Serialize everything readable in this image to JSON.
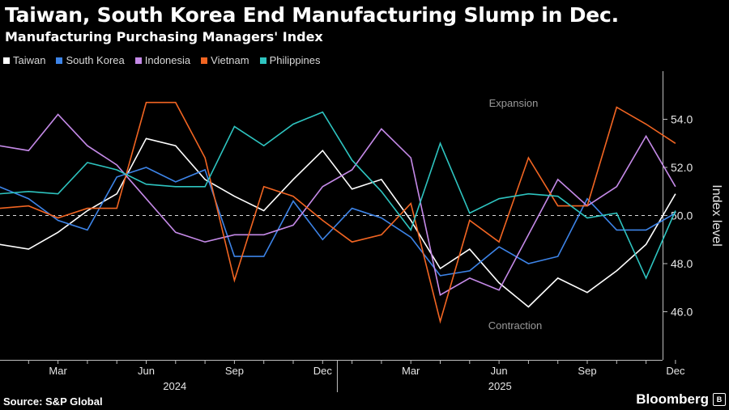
{
  "header": {
    "title": "Taiwan, South Korea End Manufacturing Slump in Dec.",
    "subtitle": "Manufacturing Purchasing Managers' Index"
  },
  "footer": {
    "source": "Source: S&P Global",
    "brand": "Bloomberg"
  },
  "colors": {
    "background": "#000000",
    "Taiwan": "#ffffff",
    "South Korea": "#3d84e8",
    "Indonesia": "#c58ae8",
    "Vietnam": "#f26522",
    "Philippines": "#2ec4c0"
  },
  "chart_data": {
    "type": "line",
    "ylabel": "Index level",
    "ylim": [
      44,
      56
    ],
    "yticks": [
      46.0,
      48.0,
      50.0,
      52.0,
      54.0
    ],
    "y_tick_labels": [
      "46.0",
      "48.0",
      "50.0",
      "52.0",
      "54.0"
    ],
    "reference_line": 50.0,
    "y_axis_position": "right",
    "grid": "vertical month ticks only",
    "legend_position": "top-left",
    "annotations": {
      "above": "Expansion",
      "below": "Contraction"
    },
    "x": [
      "2024-01",
      "2024-02",
      "2024-03",
      "2024-04",
      "2024-05",
      "2024-06",
      "2024-07",
      "2024-08",
      "2024-09",
      "2024-10",
      "2024-11",
      "2024-12",
      "2025-01",
      "2025-02",
      "2025-03",
      "2025-04",
      "2025-05",
      "2025-06",
      "2025-07",
      "2025-08",
      "2025-09",
      "2025-10",
      "2025-11",
      "2025-12"
    ],
    "x_tick_labels": [
      "Mar",
      "Jun",
      "Sep",
      "Dec",
      "Mar",
      "Jun",
      "Sep",
      "Dec"
    ],
    "x_tick_months": [
      "2024-03",
      "2024-06",
      "2024-09",
      "2024-12",
      "2025-03",
      "2025-06",
      "2025-09",
      "2025-12"
    ],
    "year_labels": [
      "2024",
      "2025"
    ],
    "series": [
      {
        "name": "Taiwan",
        "values": [
          48.8,
          48.6,
          49.3,
          50.2,
          50.9,
          53.2,
          52.9,
          51.5,
          50.8,
          50.2,
          51.5,
          52.7,
          51.1,
          51.5,
          49.8,
          47.8,
          48.6,
          47.2,
          46.2,
          47.4,
          46.8,
          47.7,
          48.8,
          50.9
        ]
      },
      {
        "name": "South Korea",
        "values": [
          51.2,
          50.7,
          49.8,
          49.4,
          51.6,
          52.0,
          51.4,
          51.9,
          48.3,
          48.3,
          50.6,
          49.0,
          50.3,
          49.9,
          49.1,
          47.5,
          47.7,
          48.7,
          48.0,
          48.3,
          50.7,
          49.4,
          49.4,
          50.1
        ]
      },
      {
        "name": "Indonesia",
        "values": [
          52.9,
          52.7,
          54.2,
          52.9,
          52.1,
          50.7,
          49.3,
          48.9,
          49.2,
          49.2,
          49.6,
          51.2,
          51.9,
          53.6,
          52.4,
          46.7,
          47.4,
          46.9,
          49.2,
          51.5,
          50.4,
          51.2,
          53.3,
          51.2
        ]
      },
      {
        "name": "Vietnam",
        "values": [
          50.3,
          50.4,
          49.9,
          50.3,
          50.3,
          54.7,
          54.7,
          52.4,
          47.3,
          51.2,
          50.8,
          49.8,
          48.9,
          49.2,
          50.5,
          45.6,
          49.8,
          48.9,
          52.4,
          50.4,
          50.4,
          54.5,
          53.8,
          53.0
        ]
      },
      {
        "name": "Philippines",
        "values": [
          50.9,
          51.0,
          50.9,
          52.2,
          51.9,
          51.3,
          51.2,
          51.2,
          53.7,
          52.9,
          53.8,
          54.3,
          52.3,
          51.0,
          49.4,
          53.0,
          50.1,
          50.7,
          50.9,
          50.8,
          49.9,
          50.1,
          47.4,
          50.2
        ]
      }
    ]
  }
}
